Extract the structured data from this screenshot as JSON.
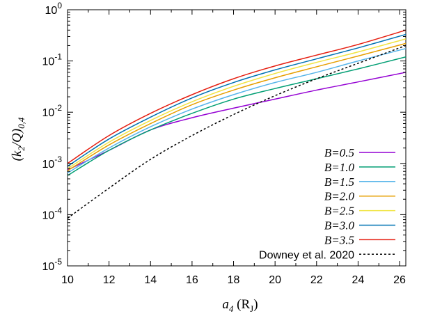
{
  "chart_data": {
    "type": "line",
    "x_scale": "linear",
    "y_scale": "log",
    "xlim": [
      10,
      26.3
    ],
    "ylim": [
      1e-05,
      1
    ],
    "x_ticks": [
      {
        "value": 10,
        "label": "10"
      },
      {
        "value": 12,
        "label": "12"
      },
      {
        "value": 14,
        "label": "14"
      },
      {
        "value": 16,
        "label": "16"
      },
      {
        "value": 18,
        "label": "18"
      },
      {
        "value": 20,
        "label": "20"
      },
      {
        "value": 22,
        "label": "22"
      },
      {
        "value": 24,
        "label": "24"
      },
      {
        "value": 26,
        "label": "26"
      }
    ],
    "y_ticks": [
      {
        "exp": -5,
        "base": "10",
        "sup": "-5"
      },
      {
        "exp": -4,
        "base": "10",
        "sup": "-4"
      },
      {
        "exp": -3,
        "base": "10",
        "sup": "-3"
      },
      {
        "exp": -2,
        "base": "10",
        "sup": "-2"
      },
      {
        "exp": -1,
        "base": "10",
        "sup": "-1"
      },
      {
        "exp": 0,
        "base": "10",
        "sup": "0"
      }
    ],
    "xlabel": {
      "main": "a",
      "sub": "4",
      "unit_open": " (R",
      "unit_sub": "J",
      "unit_close": ")"
    },
    "ylabel": {
      "open": "(k",
      "sub1": "2",
      "mid": "/Q)",
      "sub2": "0,4"
    },
    "legend_position": "bottom-right",
    "grid": false,
    "series": [
      {
        "name": "B=0.5",
        "color": "#9400d3",
        "dash": "none",
        "x": [
          10,
          12,
          14,
          16,
          18,
          20,
          22,
          24,
          26.3
        ],
        "y": [
          0.00075,
          0.0018,
          0.0045,
          0.0078,
          0.012,
          0.018,
          0.027,
          0.039,
          0.06
        ]
      },
      {
        "name": "B=1.0",
        "color": "#009e73",
        "dash": "none",
        "x": [
          10,
          12,
          14,
          16,
          18,
          20,
          22,
          24,
          26.3
        ],
        "y": [
          0.00058,
          0.0018,
          0.0045,
          0.0095,
          0.018,
          0.029,
          0.045,
          0.07,
          0.12
        ]
      },
      {
        "name": "B=1.5",
        "color": "#56b4e9",
        "dash": "none",
        "x": [
          10,
          12,
          14,
          16,
          18,
          20,
          22,
          24,
          26.3
        ],
        "y": [
          0.00065,
          0.002,
          0.0052,
          0.0115,
          0.022,
          0.038,
          0.06,
          0.1,
          0.175
        ]
      },
      {
        "name": "B=2.0",
        "color": "#e69f00",
        "dash": "none",
        "x": [
          10,
          12,
          14,
          16,
          18,
          20,
          22,
          24,
          26.3
        ],
        "y": [
          0.00072,
          0.0023,
          0.006,
          0.014,
          0.027,
          0.047,
          0.077,
          0.125,
          0.22
        ]
      },
      {
        "name": "B=2.5",
        "color": "#f0e442",
        "dash": "none",
        "x": [
          10,
          12,
          14,
          16,
          18,
          20,
          22,
          24,
          26.3
        ],
        "y": [
          0.00079,
          0.0026,
          0.0069,
          0.016,
          0.032,
          0.057,
          0.094,
          0.15,
          0.27
        ]
      },
      {
        "name": "B=3.0",
        "color": "#0072b2",
        "dash": "none",
        "x": [
          10,
          12,
          14,
          16,
          18,
          20,
          22,
          24,
          26.3
        ],
        "y": [
          0.00088,
          0.003,
          0.008,
          0.019,
          0.038,
          0.067,
          0.11,
          0.18,
          0.33
        ]
      },
      {
        "name": "B=3.5",
        "color": "#e51e10",
        "dash": "none",
        "x": [
          10,
          12,
          14,
          16,
          18,
          20,
          22,
          24,
          26.3
        ],
        "y": [
          0.001,
          0.0035,
          0.0095,
          0.022,
          0.045,
          0.08,
          0.13,
          0.21,
          0.4
        ]
      },
      {
        "name": "Downey et al. 2020",
        "color": "#000000",
        "dash": "3,3",
        "x": [
          10,
          12,
          14,
          16,
          18,
          20,
          22,
          24,
          26.3
        ],
        "y": [
          8.5e-05,
          0.00033,
          0.0012,
          0.0035,
          0.009,
          0.021,
          0.045,
          0.09,
          0.2
        ]
      }
    ]
  }
}
